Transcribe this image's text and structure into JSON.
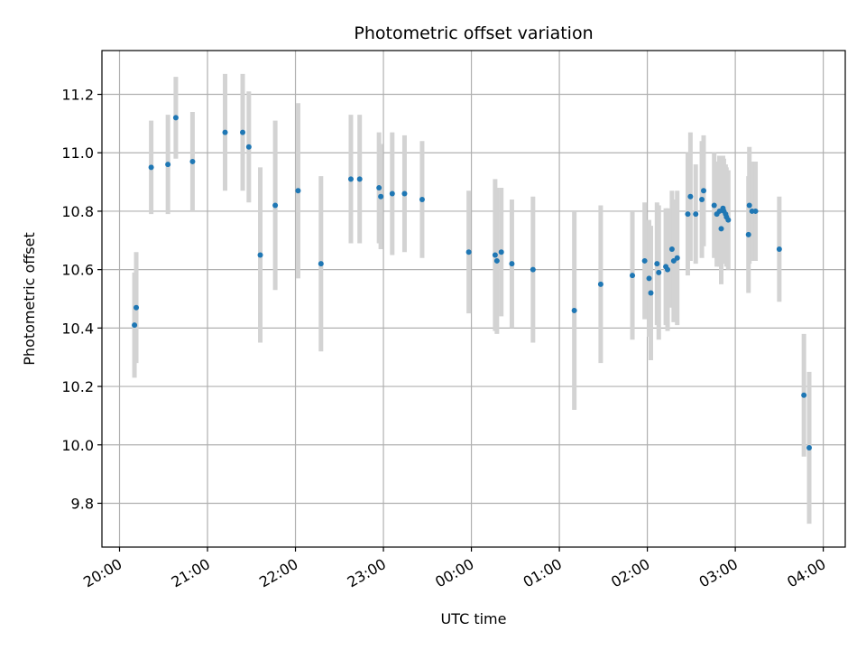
{
  "chart_data": {
    "type": "scatter",
    "title": "Photometric offset variation",
    "xlabel": "UTC time",
    "ylabel": "Photometric offset",
    "grid": true,
    "xlim": [
      "20:00",
      "04:00"
    ],
    "x_range_hours": [
      19.8,
      28.25
    ],
    "ylim": [
      9.65,
      11.35
    ],
    "x_ticks": [
      {
        "value": 20,
        "label": "20:00"
      },
      {
        "value": 21,
        "label": "21:00"
      },
      {
        "value": 22,
        "label": "22:00"
      },
      {
        "value": 23,
        "label": "23:00"
      },
      {
        "value": 24,
        "label": "00:00"
      },
      {
        "value": 25,
        "label": "01:00"
      },
      {
        "value": 26,
        "label": "02:00"
      },
      {
        "value": 27,
        "label": "03:00"
      },
      {
        "value": 28,
        "label": "04:00"
      }
    ],
    "y_ticks": [
      {
        "value": 9.8,
        "label": "9.8"
      },
      {
        "value": 10.0,
        "label": "10.0"
      },
      {
        "value": 10.2,
        "label": "10.2"
      },
      {
        "value": 10.4,
        "label": "10.4"
      },
      {
        "value": 10.6,
        "label": "10.6"
      },
      {
        "value": 10.8,
        "label": "10.8"
      },
      {
        "value": 11.0,
        "label": "11.0"
      },
      {
        "value": 11.2,
        "label": "11.2"
      }
    ],
    "colors": {
      "marker": "#1f77b4",
      "errorbar": "#d3d3d3",
      "grid": "#b0b0b0"
    },
    "series": [
      {
        "x": [
          20.17,
          20.19,
          20.36,
          20.55,
          20.64,
          20.83,
          21.2,
          21.4,
          21.47,
          21.6,
          21.77,
          22.03,
          22.29,
          22.63,
          22.73,
          22.95,
          22.97,
          23.1,
          23.24,
          23.44,
          23.97,
          24.27,
          24.29,
          24.34,
          24.46,
          24.7,
          25.17,
          25.47,
          25.83,
          25.97,
          26.02,
          26.04,
          26.11,
          26.13,
          26.21,
          26.23,
          26.28,
          26.3,
          26.34,
          26.46,
          26.49,
          26.55,
          26.62,
          26.64,
          26.76,
          26.79,
          26.82,
          26.84,
          26.86,
          26.87,
          26.89,
          26.9,
          26.92,
          27.15,
          27.16,
          27.19,
          27.23,
          27.5,
          27.78,
          27.84
        ],
        "y": [
          10.41,
          10.47,
          10.95,
          10.96,
          11.12,
          10.97,
          11.07,
          11.07,
          11.02,
          10.65,
          10.82,
          10.87,
          10.62,
          10.91,
          10.91,
          10.88,
          10.85,
          10.86,
          10.86,
          10.84,
          10.66,
          10.65,
          10.63,
          10.66,
          10.62,
          10.6,
          10.46,
          10.55,
          10.58,
          10.63,
          10.57,
          10.52,
          10.62,
          10.59,
          10.61,
          10.6,
          10.67,
          10.63,
          10.64,
          10.79,
          10.85,
          10.79,
          10.84,
          10.87,
          10.82,
          10.79,
          10.8,
          10.74,
          10.81,
          10.8,
          10.79,
          10.78,
          10.77,
          10.72,
          10.82,
          10.8,
          10.8,
          10.67,
          10.17,
          9.99
        ],
        "yerr": [
          0.18,
          0.19,
          0.16,
          0.17,
          0.14,
          0.17,
          0.2,
          0.2,
          0.19,
          0.3,
          0.29,
          0.3,
          0.3,
          0.22,
          0.22,
          0.19,
          0.18,
          0.21,
          0.2,
          0.2,
          0.21,
          0.26,
          0.25,
          0.22,
          0.22,
          0.25,
          0.34,
          0.27,
          0.22,
          0.2,
          0.2,
          0.23,
          0.21,
          0.23,
          0.2,
          0.21,
          0.2,
          0.21,
          0.23,
          0.21,
          0.22,
          0.17,
          0.2,
          0.19,
          0.18,
          0.18,
          0.19,
          0.19,
          0.18,
          0.18,
          0.17,
          0.17,
          0.17,
          0.2,
          0.2,
          0.17,
          0.17,
          0.18,
          0.21,
          0.26
        ]
      }
    ]
  }
}
